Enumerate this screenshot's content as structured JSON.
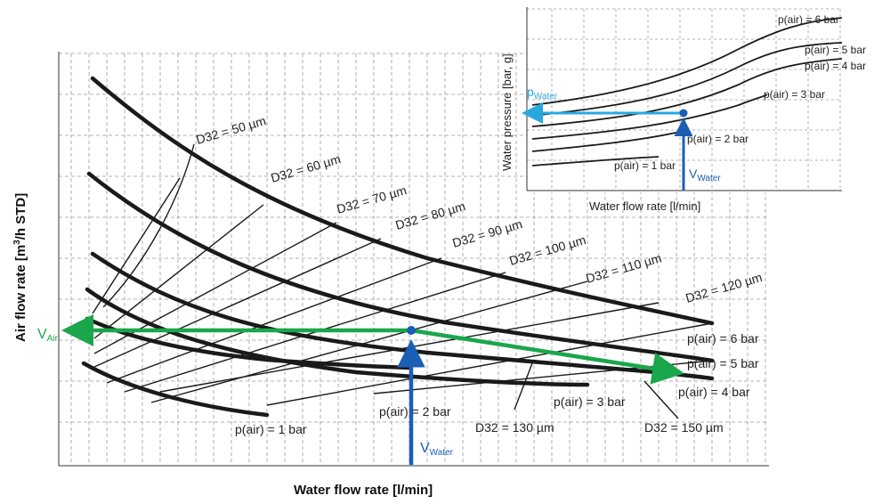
{
  "main_chart": {
    "x_axis_title": "Water flow rate [l/min]",
    "y_axis_title_prefix": "Air flow rate [m",
    "y_axis_title_sup": "3",
    "y_axis_title_suffix": "/h STD]",
    "v_air": {
      "main": "V",
      "sub": "Air"
    },
    "v_water": {
      "main": "V",
      "sub": "Water"
    },
    "d32_labels": [
      "D32 = 50 µm",
      "D32 = 60 µm",
      "D32 = 70 µm",
      "D32 = 80 µm",
      "D32 = 90 µm",
      "D32 = 100 µm",
      "D32 = 110 µm",
      "D32 = 120 µm",
      "D32 = 130 µm",
      "D32 = 150 µm"
    ],
    "pressure_labels": [
      "p(air) = 1 bar",
      "p(air) = 2 bar",
      "p(air) = 3 bar",
      "p(air) = 4 bar",
      "p(air) = 5 bar",
      "p(air) = 6 bar"
    ],
    "colors": {
      "air": "#1aa64b",
      "water": "#1a5fb4",
      "curves": "#1a1a1a",
      "grid": "#9a9a9a"
    }
  },
  "inset_chart": {
    "x_axis_title": "Water flow rate [l/min]",
    "y_axis_title": "Water pressure [bar, g]",
    "p_water": {
      "main": "p",
      "sub": "Water"
    },
    "v_water": {
      "main": "V",
      "sub": "Water"
    },
    "pressure_labels": [
      "p(air) = 6 bar",
      "p(air) = 5 bar",
      "p(air) = 4 bar",
      "p(air) = 3 bar",
      "p(air) = 2 bar",
      "p(air) = 1 bar"
    ],
    "colors": {
      "water_pressure": "#29a8e0",
      "water_flow": "#1a5fb4"
    }
  }
}
